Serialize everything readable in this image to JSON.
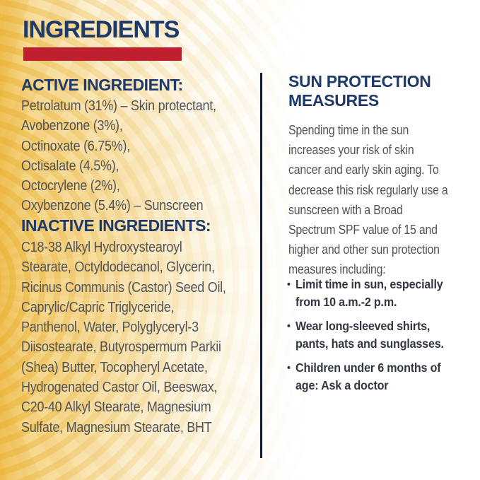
{
  "header": {
    "title": "INGREDIENTS"
  },
  "colors": {
    "heading_navy": "#1d3a6a",
    "underline_red": "#c01f2f",
    "body_gray": "#515358",
    "bullet_dark": "#333742",
    "sunburst_gold": "#ecb843",
    "divider_navy": "#131b2d"
  },
  "left_column": {
    "active_heading": "ACTIVE INGREDIENT:",
    "active_list": "Petrolatum (31%) – Skin protectant,\nAvobenzone (3%),\nOctinoxate (6.75%),\nOctisalate (4.5%),\nOctocrylene (2%),\nOxybenzone (5.4%) – Sunscreen",
    "inactive_heading": "INACTIVE INGREDIENTS:",
    "inactive_list": "C18-38 Alkyl Hydroxystearoyl\nStearate, Octyldodecanol, Glycerin,\nRicinus Communis (Castor) Seed Oil,\nCaprylic/Capric Triglyceride,\nPanthenol, Water, Polyglyceryl-3\nDiisostearate, Butyrospermum Parkii\n(Shea) Butter, Tocopheryl Acetate,\nHydrogenated Castor Oil, Beeswax,\nC20-40 Alkyl Stearate, Magnesium\nSulfate, Magnesium Stearate, BHT"
  },
  "right_column": {
    "heading": "SUN PROTECTION\nMEASURES",
    "paragraph": "Spending time in the sun\nincreases your risk of skin\ncancer and early skin aging. To\ndecrease this risk regularly use a\nsunscreen with a Broad\nSpectrum SPF value of 15 and\nhigher and other sun protection\nmeasures including:",
    "bullet_glyph": "•",
    "bullets": [
      {
        "text": "Limit time in sun, especially\nfrom 10 a.m.-2 p.m."
      },
      {
        "text": "Wear long-sleeved shirts,\npants, hats and sunglasses."
      },
      {
        "text": "Children under 6 months of\nage: Ask a doctor"
      }
    ]
  }
}
